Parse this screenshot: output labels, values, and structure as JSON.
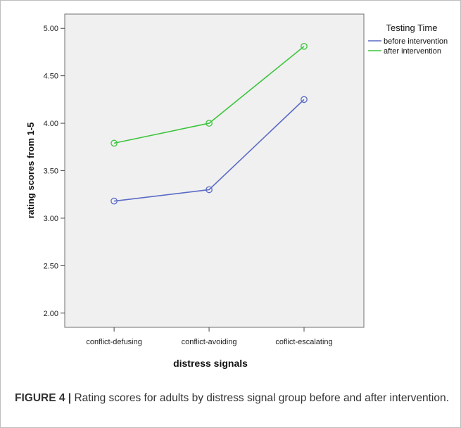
{
  "chart_data": {
    "type": "line",
    "categories": [
      "conflict-defusing",
      "conflict-avoiding",
      "coflict-escalating"
    ],
    "series": [
      {
        "name": "before intervention",
        "values": [
          3.18,
          3.3,
          4.25
        ],
        "color": "#5a6bc6"
      },
      {
        "name": "after intervention",
        "values": [
          3.79,
          4.0,
          4.81
        ],
        "color": "#3dc53d"
      }
    ],
    "xlabel": "distress signals",
    "ylabel": "rating scores from 1-5",
    "ylim": [
      1.85,
      5.15
    ],
    "yticks": [
      "2.00",
      "2.50",
      "3.00",
      "3.50",
      "4.00",
      "4.50",
      "5.00"
    ],
    "legend_title": "Testing Time",
    "legend_position": "right",
    "grid": false,
    "plot_background": "#f0f0f0"
  },
  "caption": {
    "label": "FIGURE 4 |",
    "text": " Rating scores for adults by distress signal group before and after intervention."
  }
}
